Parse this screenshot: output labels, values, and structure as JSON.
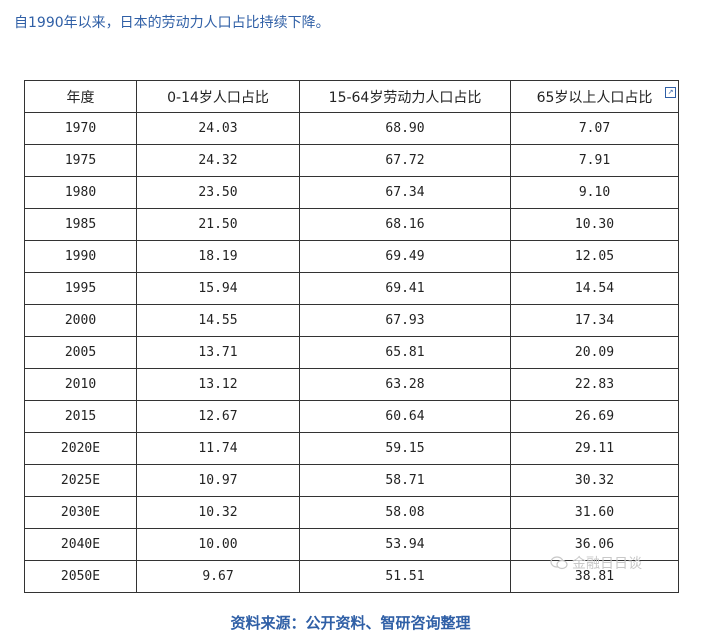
{
  "intro_text": "自1990年以来，日本的劳动力人口占比持续下降。",
  "table": {
    "headers": [
      "年度",
      "0-14岁人口占比",
      "15-64岁劳动力人口占比",
      "65岁以上人口占比"
    ],
    "rows": [
      [
        "1970",
        "24.03",
        "68.90",
        "7.07"
      ],
      [
        "1975",
        "24.32",
        "67.72",
        "7.91"
      ],
      [
        "1980",
        "23.50",
        "67.34",
        "9.10"
      ],
      [
        "1985",
        "21.50",
        "68.16",
        "10.30"
      ],
      [
        "1990",
        "18.19",
        "69.49",
        "12.05"
      ],
      [
        "1995",
        "15.94",
        "69.41",
        "14.54"
      ],
      [
        "2000",
        "14.55",
        "67.93",
        "17.34"
      ],
      [
        "2005",
        "13.71",
        "65.81",
        "20.09"
      ],
      [
        "2010",
        "13.12",
        "63.28",
        "22.83"
      ],
      [
        "2015",
        "12.67",
        "60.64",
        "26.69"
      ],
      [
        "2020E",
        "11.74",
        "59.15",
        "29.11"
      ],
      [
        "2025E",
        "10.97",
        "58.71",
        "30.32"
      ],
      [
        "2030E",
        "10.32",
        "58.08",
        "31.60"
      ],
      [
        "2040E",
        "10.00",
        "53.94",
        "36.06"
      ],
      [
        "2050E",
        "9.67",
        "51.51",
        "38.81"
      ]
    ]
  },
  "watermark": {
    "icon": "wechat-icon",
    "text": "金融日日谈"
  },
  "source_text": "资料来源：公开资料、智研咨询整理"
}
